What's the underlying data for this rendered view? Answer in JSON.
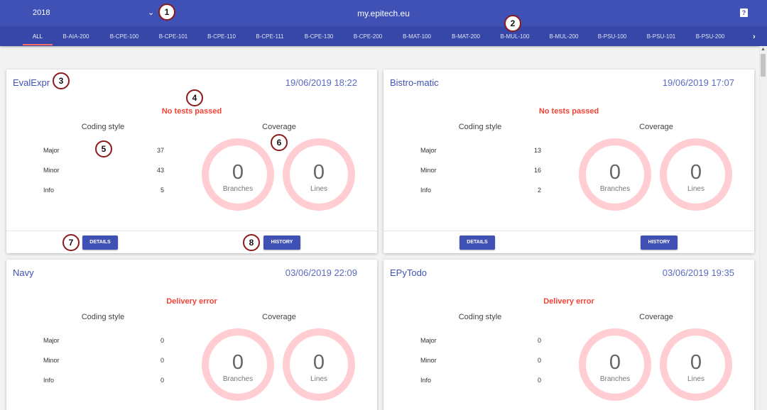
{
  "topbar": {
    "year": "2018",
    "site_title": "my.epitech.eu"
  },
  "tabs": [
    "ALL",
    "B-AIA-200",
    "B-CPE-100",
    "B-CPE-101",
    "B-CPE-110",
    "B-CPE-111",
    "B-CPE-130",
    "B-CPE-200",
    "B-MAT-100",
    "B-MAT-200",
    "B-MUL-100",
    "B-MUL-200",
    "B-PSU-100",
    "B-PSU-101",
    "B-PSU-200"
  ],
  "cards": [
    {
      "name": "EvalExpr",
      "date": "19/06/2019 18:22",
      "status": "No tests passed",
      "coding_style_title": "Coding style",
      "coverage_title": "Coverage",
      "style": [
        {
          "label": "Major",
          "value": "37"
        },
        {
          "label": "Minor",
          "value": "43"
        },
        {
          "label": "Info",
          "value": "5"
        }
      ],
      "coverage": [
        {
          "value": "0",
          "label": "Branches"
        },
        {
          "value": "0",
          "label": "Lines"
        }
      ],
      "details_label": "DETAILS",
      "history_label": "HISTORY"
    },
    {
      "name": "Bistro-matic",
      "date": "19/06/2019 17:07",
      "status": "No tests passed",
      "coding_style_title": "Coding style",
      "coverage_title": "Coverage",
      "style": [
        {
          "label": "Major",
          "value": "13"
        },
        {
          "label": "Minor",
          "value": "16"
        },
        {
          "label": "Info",
          "value": "2"
        }
      ],
      "coverage": [
        {
          "value": "0",
          "label": "Branches"
        },
        {
          "value": "0",
          "label": "Lines"
        }
      ],
      "details_label": "DETAILS",
      "history_label": "HISTORY"
    },
    {
      "name": "Navy",
      "date": "03/06/2019 22:09",
      "status": "Delivery error",
      "coding_style_title": "Coding style",
      "coverage_title": "Coverage",
      "style": [
        {
          "label": "Major",
          "value": "0"
        },
        {
          "label": "Minor",
          "value": "0"
        },
        {
          "label": "Info",
          "value": "0"
        }
      ],
      "coverage": [
        {
          "value": "0",
          "label": "Branches"
        },
        {
          "value": "0",
          "label": "Lines"
        }
      ]
    },
    {
      "name": "EPyTodo",
      "date": "03/06/2019 19:35",
      "status": "Delivery error",
      "coding_style_title": "Coding style",
      "coverage_title": "Coverage",
      "style": [
        {
          "label": "Major",
          "value": "0"
        },
        {
          "label": "Minor",
          "value": "0"
        },
        {
          "label": "Info",
          "value": "0"
        }
      ],
      "coverage": [
        {
          "value": "0",
          "label": "Branches"
        },
        {
          "value": "0",
          "label": "Lines"
        }
      ]
    }
  ],
  "markers": [
    "1",
    "2",
    "3",
    "4",
    "5",
    "6",
    "7",
    "8"
  ],
  "colors": {
    "primary": "#3f51b5",
    "tabbar": "#3647a8",
    "status_error": "#f44336",
    "ring": "#ffcdd2",
    "tab_underline": "#ff6e66"
  },
  "icons": {
    "year_dropdown": "chevron-down-icon",
    "help": "help-icon",
    "tabs_next": "chevron-right-icon",
    "scroll_up": "arrow-up-icon"
  }
}
